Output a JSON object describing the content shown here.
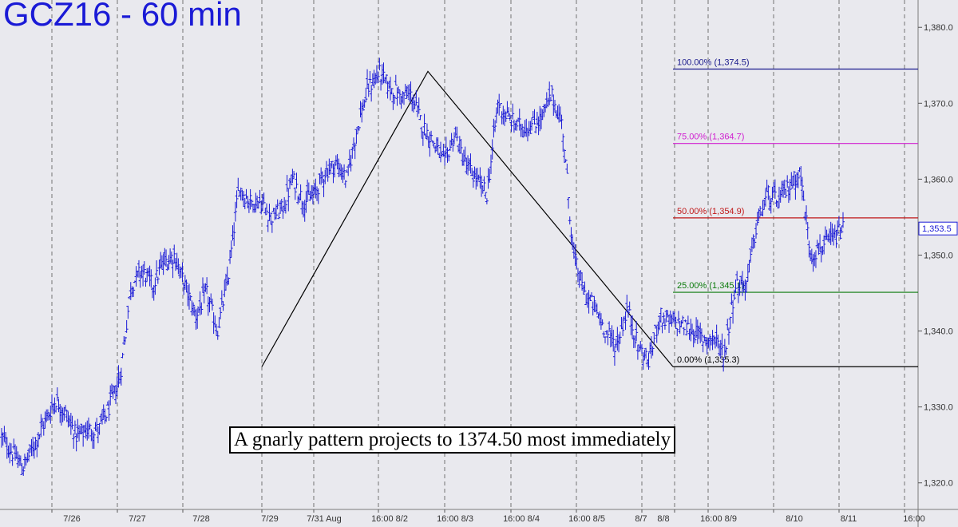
{
  "title": "GCZ16 - 60 min",
  "annotation": "A gnarly pattern projects to 1374.50 most immediately",
  "chart_data": {
    "type": "ohlc",
    "title": "GCZ16 - 60 min",
    "ylim": [
      1317,
      1384
    ],
    "y_ticks": [
      1320,
      1330,
      1340,
      1350,
      1360,
      1370,
      1380
    ],
    "y_tick_labels": [
      "1,320.0",
      "1,330.0",
      "1,340.0",
      "1,350.0",
      "1,360.0",
      "1,370.0",
      "1,380.0"
    ],
    "x_tick_labels": [
      "7/26",
      "7/27",
      "7/28",
      "7/29",
      "7/31 Aug",
      "16:00 8/2",
      "16:00 8/3",
      "16:00 8/4",
      "16:00 8/5",
      "8/7",
      "8/8",
      "16:00 8/9",
      "8/10",
      "8/11",
      "16:00"
    ],
    "last_price": "1,353.5",
    "grid": "dashed vertical session lines",
    "fibonacci_levels": [
      {
        "label": "100.00% (1,374.5)",
        "value": 1374.5,
        "color": "#1a1a8c"
      },
      {
        "label": "75.00% (1,364.7)",
        "value": 1364.7,
        "color": "#d020d0"
      },
      {
        "label": "50.00% (1,354.9)",
        "value": 1354.9,
        "color": "#c01818"
      },
      {
        "label": "25.00% (1,345.1)",
        "value": 1345.1,
        "color": "#0a7a0a"
      },
      {
        "label": "0.00% (1,335.3)",
        "value": 1335.3,
        "color": "#000000"
      }
    ],
    "series_close_path": [
      1326,
      1324,
      1322,
      1325,
      1328,
      1331,
      1329,
      1326,
      1327,
      1327,
      1330,
      1334,
      1346,
      1348,
      1346,
      1349,
      1350,
      1346,
      1342,
      1345,
      1340,
      1347,
      1359,
      1357,
      1357,
      1355,
      1356,
      1360,
      1357,
      1358,
      1361,
      1362,
      1360,
      1367,
      1372,
      1374,
      1372,
      1371,
      1371,
      1367,
      1365,
      1362,
      1366,
      1362,
      1360,
      1358,
      1370,
      1368,
      1367,
      1367,
      1368,
      1371,
      1367,
      1350,
      1345,
      1343,
      1340,
      1338,
      1343,
      1338,
      1336,
      1342,
      1341,
      1341,
      1340,
      1339,
      1339,
      1337,
      1346,
      1346,
      1354,
      1358,
      1357,
      1359,
      1361,
      1350,
      1351,
      1352,
      1353.5
    ]
  }
}
